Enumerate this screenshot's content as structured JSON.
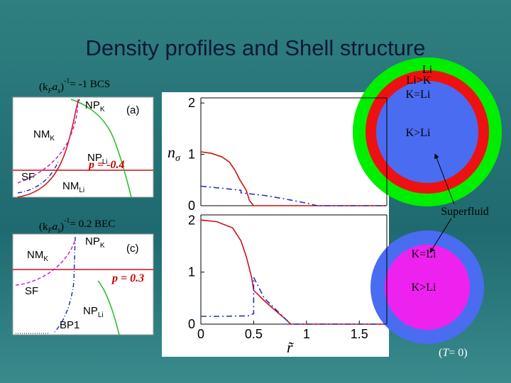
{
  "title": "Density profiles and Shell structure",
  "insets": [
    {
      "label": [
        "(k",
        "F",
        "a",
        "s",
        ")",
        "-1",
        "= -1   BCS"
      ],
      "p_label": "p = -0.4",
      "annotations": [
        {
          "text": "NP",
          "sub": "K"
        },
        {
          "text": "(a)"
        },
        {
          "text": "NM",
          "sub": "K"
        },
        {
          "text": "NP",
          "sub": "Li"
        },
        {
          "text": "SF"
        },
        {
          "text": "NM",
          "sub": "Li"
        }
      ]
    },
    {
      "label": [
        "(k",
        "F",
        "a",
        "s",
        ")",
        "-1",
        "= 0.2   BEC"
      ],
      "p_label": "p = 0.3",
      "annotations": [
        {
          "text": "NM",
          "sub": "K"
        },
        {
          "text": "NP",
          "sub": "K"
        },
        {
          "text": "(c)"
        },
        {
          "text": "SF"
        },
        {
          "text": "NP",
          "sub": "Li"
        },
        {
          "text": "BP1"
        }
      ]
    }
  ],
  "chart_data": [
    {
      "type": "line",
      "ylabel": [
        "n",
        "σ"
      ],
      "xlim": [
        0,
        1.76
      ],
      "ylim": [
        0,
        2.1
      ],
      "yticks": [
        0,
        1,
        2
      ],
      "series": [
        {
          "color": "#cc1111",
          "linestyle": "solid",
          "x": [
            0,
            0.1,
            0.2,
            0.27,
            0.32,
            0.37,
            0.4,
            0.43,
            0.46,
            0.5,
            1.76
          ],
          "values": [
            1.05,
            1.02,
            0.95,
            0.85,
            0.7,
            0.5,
            0.4,
            0.3,
            0.1,
            0,
            0
          ]
        },
        {
          "color": "#2233bb",
          "linestyle": "dashdot",
          "x": [
            0,
            0.2,
            0.38,
            0.38,
            0.6,
            0.8,
            1.0,
            1.1,
            1.76
          ],
          "values": [
            0.38,
            0.34,
            0.3,
            0.25,
            0.2,
            0.13,
            0.05,
            0,
            0
          ]
        }
      ]
    },
    {
      "type": "line",
      "xlabel": "r̃",
      "xlim": [
        0,
        1.76
      ],
      "ylim": [
        0,
        2.1
      ],
      "yticks": [
        0,
        1,
        2
      ],
      "xticks": [
        0,
        0.5,
        1,
        1.5
      ],
      "series": [
        {
          "color": "#cc1111",
          "linestyle": "solid",
          "x": [
            0,
            0.15,
            0.3,
            0.38,
            0.43,
            0.48,
            0.5,
            0.6,
            0.7,
            0.8,
            0.85,
            1.76
          ],
          "values": [
            2.0,
            1.97,
            1.85,
            1.6,
            1.3,
            0.9,
            0.65,
            0.45,
            0.27,
            0.1,
            0,
            0
          ]
        },
        {
          "color": "#2233bb",
          "linestyle": "dashdot",
          "x": [
            0,
            0.2,
            0.45,
            0.5,
            0.5,
            0.6,
            0.7,
            0.8,
            0.85,
            1.76
          ],
          "values": [
            0.15,
            0.15,
            0.16,
            0.2,
            0.9,
            0.5,
            0.3,
            0.1,
            0,
            0
          ]
        }
      ]
    }
  ],
  "shells": {
    "outer": [
      "Li",
      "Li>K",
      "K=Li",
      "K>Li"
    ],
    "inner": [
      "K=Li",
      "K>Li"
    ]
  },
  "superfluid": "Superfluid",
  "temperature": [
    "(",
    "T",
    "= 0)"
  ]
}
